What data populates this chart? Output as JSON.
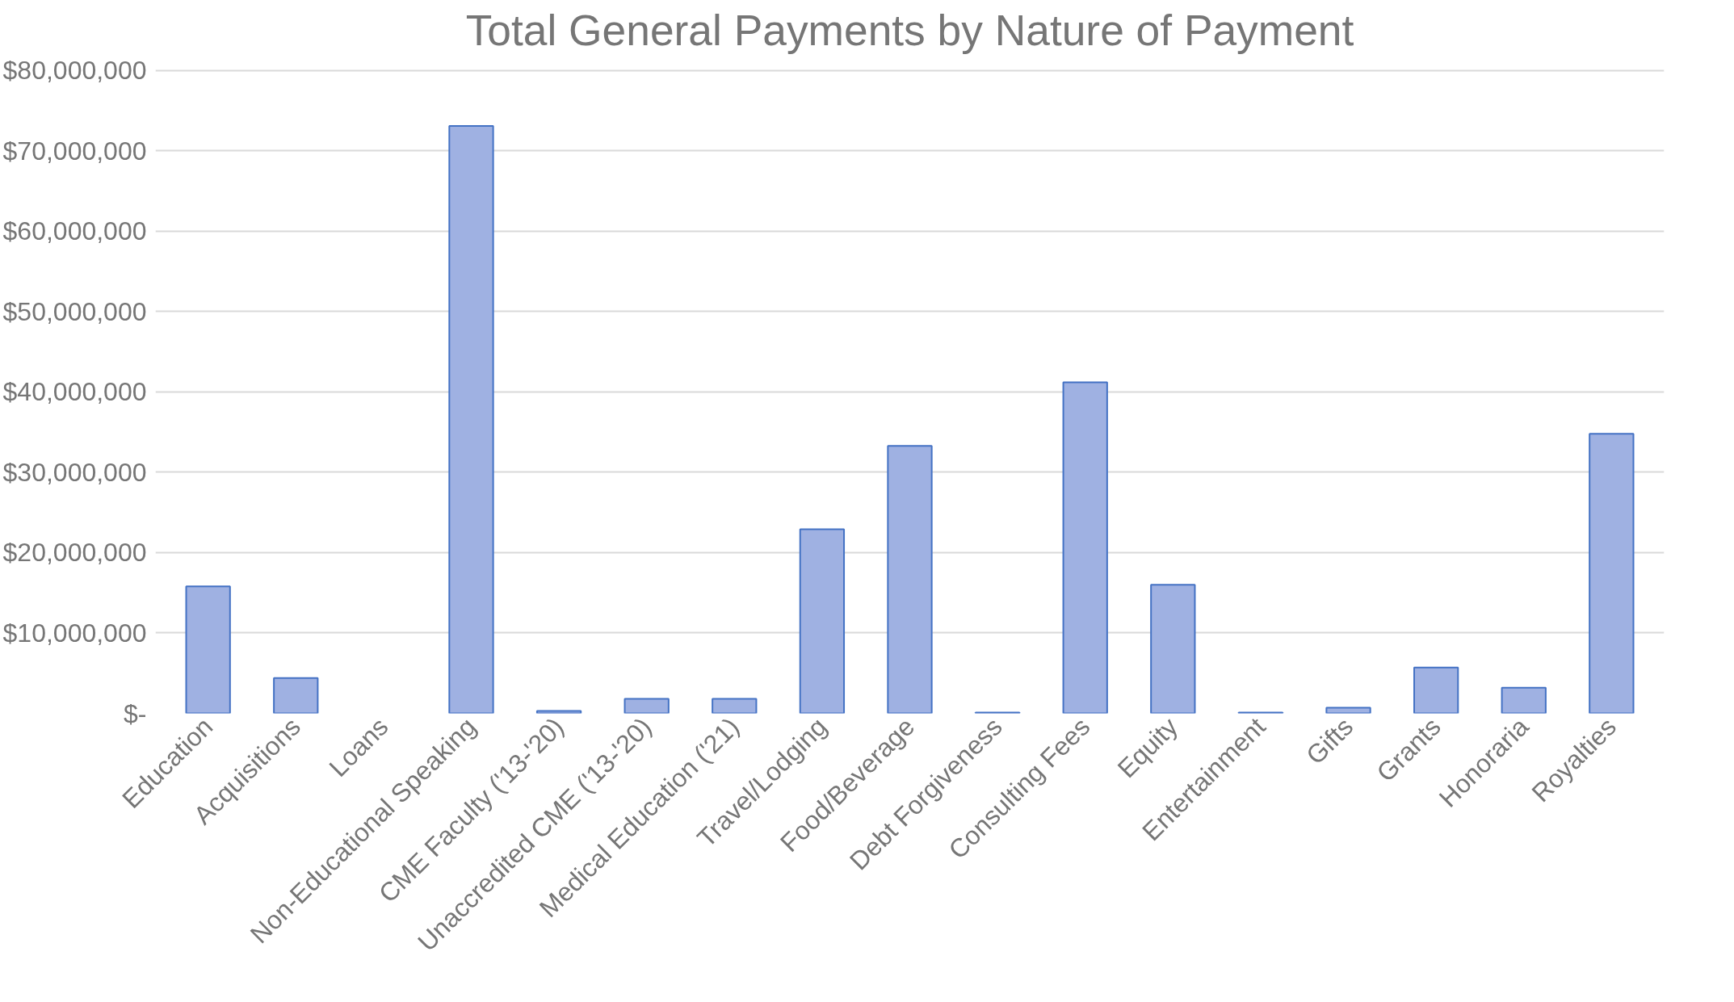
{
  "chart_data": {
    "type": "bar",
    "title": "Total General Payments by Nature of Payment",
    "categories": [
      "Education",
      "Acquisitions",
      "Loans",
      "Non-Educational Speaking",
      "CME Faculty ('13-'20)",
      "Unaccredited CME ('13-'20)",
      "Medical Education ('21)",
      "Travel/Lodging",
      "Food/Beverage",
      "Debt Forgiveness",
      "Consulting Fees",
      "Equity",
      "Entertainment",
      "Gifts",
      "Grants",
      "Honoraria",
      "Royalties"
    ],
    "values": [
      15800000,
      4400000,
      null,
      73100000,
      300000,
      1800000,
      1800000,
      22900000,
      33300000,
      100000,
      41200000,
      16000000,
      100000,
      700000,
      5700000,
      3200000,
      34800000
    ],
    "color": "#9fb1e2",
    "ylim": [
      0,
      80000000
    ],
    "yticks": [
      {
        "value": 0,
        "label": "$-"
      },
      {
        "value": 10000000,
        "label": "$10,000,000"
      },
      {
        "value": 20000000,
        "label": "$20,000,000"
      },
      {
        "value": 30000000,
        "label": "$30,000,000"
      },
      {
        "value": 40000000,
        "label": "$40,000,000"
      },
      {
        "value": 50000000,
        "label": "$50,000,000"
      },
      {
        "value": 60000000,
        "label": "$60,000,000"
      },
      {
        "value": 70000000,
        "label": "$70,000,000"
      },
      {
        "value": 80000000,
        "label": "$80,000,000"
      }
    ],
    "grid": "y"
  }
}
